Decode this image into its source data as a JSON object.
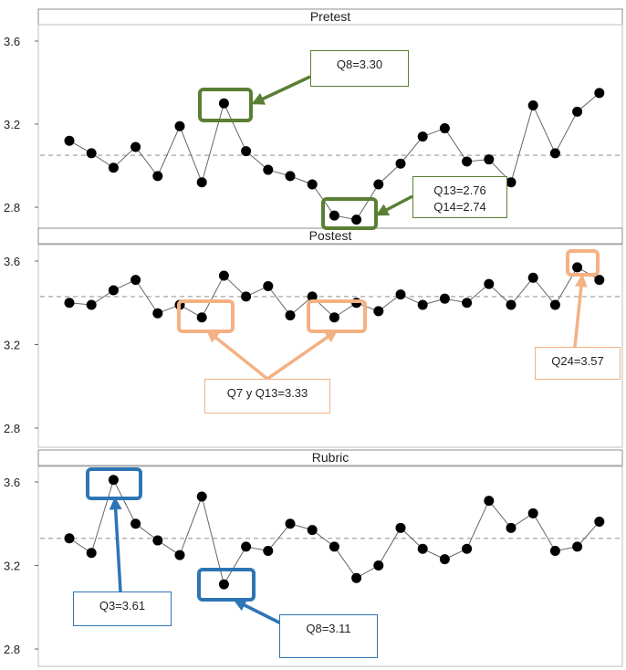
{
  "chart_data": {
    "type": "line",
    "panels": [
      {
        "title": "Pretest",
        "ylim": [
          2.75,
          3.65
        ],
        "yticks": [
          "2.8",
          "3.2",
          "3.6"
        ],
        "mean": 3.05,
        "y": [
          3.12,
          3.06,
          2.99,
          3.09,
          2.95,
          3.19,
          2.92,
          3.3,
          3.07,
          2.98,
          2.95,
          2.91,
          2.76,
          2.74,
          2.91,
          3.01,
          3.14,
          3.18,
          3.02,
          3.03,
          2.92,
          3.29,
          3.06,
          3.26,
          3.35
        ]
      },
      {
        "title": "Postest",
        "ylim": [
          2.75,
          3.65
        ],
        "yticks": [
          "2.8",
          "3.2",
          "3.6"
        ],
        "mean": 3.43,
        "y": [
          3.4,
          3.39,
          3.46,
          3.51,
          3.35,
          3.39,
          3.33,
          3.53,
          3.43,
          3.48,
          3.34,
          3.43,
          3.33,
          3.4,
          3.36,
          3.44,
          3.39,
          3.42,
          3.4,
          3.49,
          3.39,
          3.52,
          3.39,
          3.57,
          3.51
        ]
      },
      {
        "title": "Rubric",
        "ylim": [
          2.75,
          3.65
        ],
        "yticks": [
          "2.8",
          "3.2",
          "3.6"
        ],
        "mean": 3.33,
        "y": [
          3.33,
          3.26,
          3.61,
          3.4,
          3.32,
          3.25,
          3.53,
          3.11,
          3.29,
          3.27,
          3.4,
          3.37,
          3.29,
          3.14,
          3.2,
          3.38,
          3.28,
          3.23,
          3.28,
          3.51,
          3.38,
          3.45,
          3.27,
          3.29,
          3.41
        ]
      }
    ],
    "annotations": [
      {
        "panel": 0,
        "text": "Q8=3.30",
        "color": "#5a7f34",
        "points": [
          8
        ]
      },
      {
        "panel": 0,
        "text": "Q13=2.76\nQ14=2.74",
        "color": "#5a7f34",
        "points": [
          13,
          14
        ]
      },
      {
        "panel": 1,
        "text": "Q7 y Q13=3.33",
        "color": "#f4b183",
        "points": [
          7,
          13
        ]
      },
      {
        "panel": 1,
        "text": "Q24=3.57",
        "color": "#f4b183",
        "points": [
          24
        ]
      },
      {
        "panel": 2,
        "text": "Q3=3.61",
        "color": "#2e75b6",
        "points": [
          3
        ]
      },
      {
        "panel": 2,
        "text": "Q8=3.11",
        "color": "#2e75b6",
        "points": [
          8
        ]
      }
    ]
  }
}
